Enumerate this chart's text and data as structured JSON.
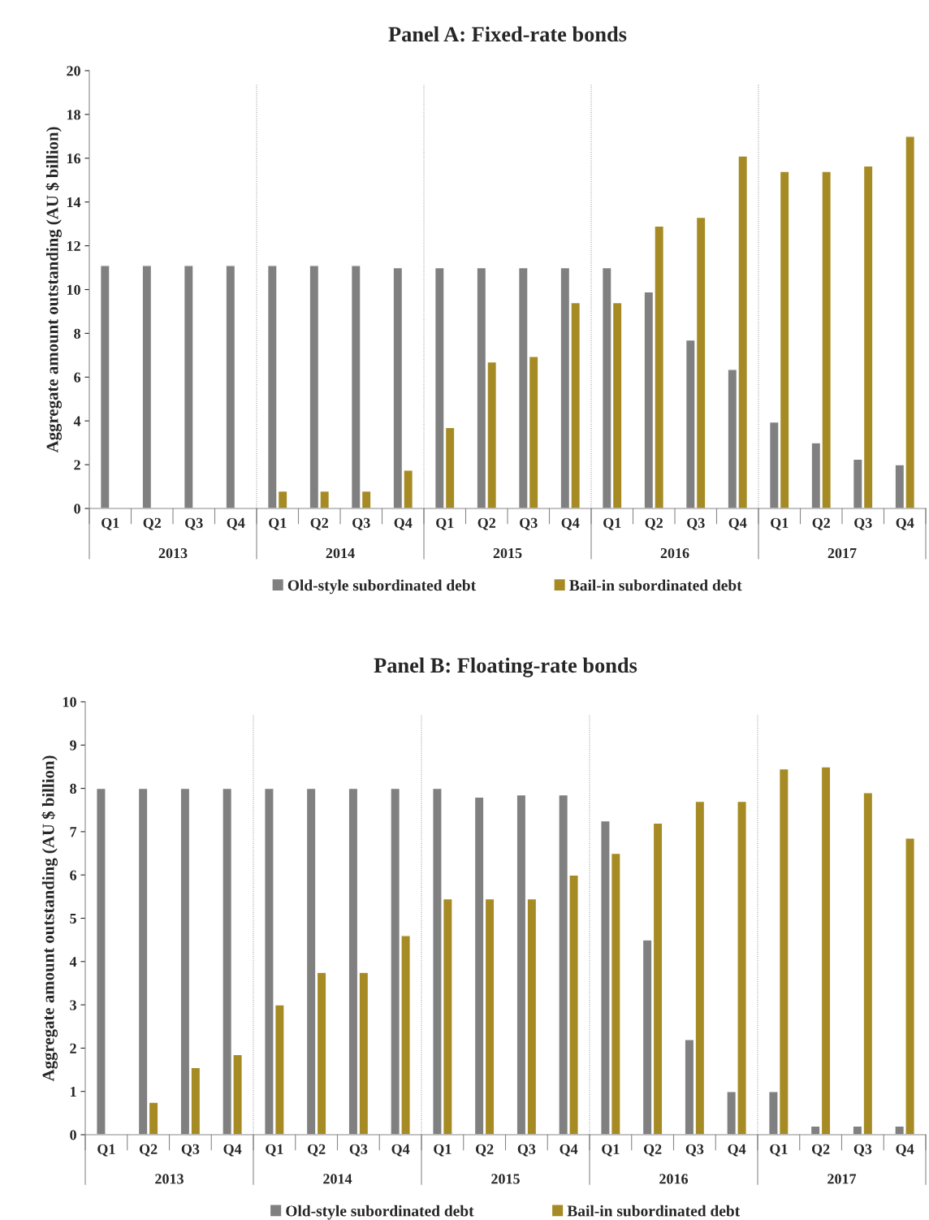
{
  "chart_data": [
    {
      "type": "bar",
      "title": "Panel A: Fixed-rate bonds",
      "ylabel": "Aggregate amount outstanding (AU $ billion)",
      "categories": [
        "Q1",
        "Q2",
        "Q3",
        "Q4",
        "Q1",
        "Q2",
        "Q3",
        "Q4",
        "Q1",
        "Q2",
        "Q3",
        "Q4",
        "Q1",
        "Q2",
        "Q3",
        "Q4",
        "Q1",
        "Q2",
        "Q3",
        "Q4"
      ],
      "series": [
        {
          "name": "Old-style subordinated debt",
          "color": "#808080",
          "values": [
            11.1,
            11.1,
            11.1,
            11.1,
            11.1,
            11.1,
            11.1,
            11.0,
            11.0,
            11.0,
            11.0,
            11.0,
            11.0,
            9.9,
            7.7,
            6.35,
            3.95,
            3.0,
            2.25,
            2.0
          ]
        },
        {
          "name": "Bail-in subordinated debt",
          "color": "#a68b24",
          "values": [
            null,
            null,
            null,
            null,
            0.8,
            0.8,
            0.8,
            1.75,
            3.7,
            6.7,
            6.95,
            9.4,
            9.4,
            12.9,
            13.3,
            16.1,
            15.4,
            15.4,
            15.65,
            17.0
          ]
        }
      ],
      "annotations": [
        "2013",
        "2014",
        "2015",
        "2016",
        "2017"
      ],
      "ylim": [
        0,
        20
      ],
      "yticks": [
        0,
        2,
        4,
        6,
        8,
        10,
        12,
        14,
        16,
        18,
        20
      ],
      "grid": false,
      "legend": "bottom"
    },
    {
      "type": "bar",
      "title": "Panel B: Floating-rate bonds",
      "ylabel": "Aggregate amount outstanding (AU $ billion)",
      "categories": [
        "Q1",
        "Q2",
        "Q3",
        "Q4",
        "Q1",
        "Q2",
        "Q3",
        "Q4",
        "Q1",
        "Q2",
        "Q3",
        "Q4",
        "Q1",
        "Q2",
        "Q3",
        "Q4",
        "Q1",
        "Q2",
        "Q3",
        "Q4"
      ],
      "series": [
        {
          "name": "Old-style subordinated debt",
          "color": "#808080",
          "values": [
            8.0,
            8.0,
            8.0,
            8.0,
            8.0,
            8.0,
            8.0,
            8.0,
            8.0,
            7.8,
            7.85,
            7.85,
            7.25,
            4.5,
            2.2,
            1.0,
            1.0,
            0.2,
            0.2,
            0.2
          ]
        },
        {
          "name": "Bail-in subordinated debt",
          "color": "#a68b24",
          "values": [
            null,
            0.75,
            1.55,
            1.85,
            3.0,
            3.75,
            3.75,
            4.6,
            5.45,
            5.45,
            5.45,
            6.0,
            6.5,
            7.2,
            7.7,
            7.7,
            8.45,
            8.5,
            7.9,
            6.85
          ]
        }
      ],
      "annotations": [
        "2013",
        "2014",
        "2015",
        "2016",
        "2017"
      ],
      "ylim": [
        0,
        10
      ],
      "yticks": [
        0,
        1,
        2,
        3,
        4,
        5,
        6,
        7,
        8,
        9,
        10
      ],
      "grid": false,
      "legend": "bottom"
    }
  ]
}
